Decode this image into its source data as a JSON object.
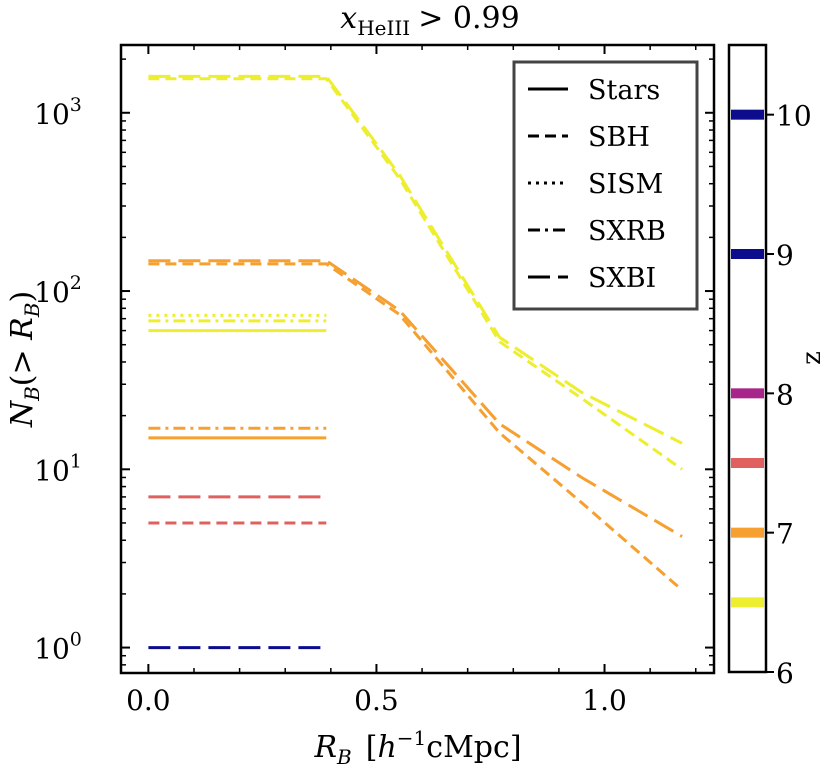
{
  "chart_data": {
    "type": "line",
    "title": "x_HeIII > 0.99",
    "title_parts": {
      "var": "x",
      "sub": "HeIII",
      "rel": "> 0.99"
    },
    "xlabel": "R_B [h^-1 cMpc]",
    "xlabel_parts": {
      "var": "R",
      "sub": "B",
      "open": "[",
      "h": "h",
      "sup": "−1",
      "unit": "cMpc",
      "close": "]"
    },
    "ylabel": "N_B(> R_B)",
    "ylabel_parts": {
      "var": "N",
      "sub": "B",
      "mid": "(> ",
      "var2": "R",
      "sub2": "B",
      "close": ")"
    },
    "xlim": [
      -0.06,
      1.24
    ],
    "ylim": [
      0.72,
      2400
    ],
    "yscale": "log",
    "xticks": [
      {
        "value": 0.0,
        "label": "0.0"
      },
      {
        "value": 0.5,
        "label": "0.5"
      },
      {
        "value": 1.0,
        "label": "1.0"
      }
    ],
    "yticks": [
      {
        "value": 1,
        "base": "10",
        "exp": "0"
      },
      {
        "value": 10,
        "base": "10",
        "exp": "1"
      },
      {
        "value": 100,
        "base": "10",
        "exp": "2"
      },
      {
        "value": 1000,
        "base": "10",
        "exp": "3"
      }
    ],
    "legend": {
      "position": "top-right",
      "entries": [
        {
          "label": "Stars",
          "style": "solid"
        },
        {
          "label": "SBH",
          "style": "dashed"
        },
        {
          "label": "SISM",
          "style": "dotted"
        },
        {
          "label": "SXRB",
          "style": "dashdot"
        },
        {
          "label": "SXBI",
          "style": "longdash"
        }
      ]
    },
    "colorbar": {
      "label": "z",
      "min": 6,
      "max": 10.5,
      "ticks": [
        {
          "value": 6,
          "label": "6"
        },
        {
          "value": 7,
          "label": "7"
        },
        {
          "value": 8,
          "label": "8"
        },
        {
          "value": 9,
          "label": "9"
        },
        {
          "value": 10,
          "label": "10"
        }
      ],
      "markers": [
        {
          "z": 10.0,
          "color": "#0c0c8c"
        },
        {
          "z": 9.0,
          "color": "#0c0c8c"
        },
        {
          "z": 8.0,
          "color": "#a8268c"
        },
        {
          "z": 7.5,
          "color": "#e06060"
        },
        {
          "z": 7.0,
          "color": "#f5a030"
        },
        {
          "z": 6.5,
          "color": "#eeee30"
        }
      ]
    },
    "series": [
      {
        "name": "SXBI z=6.5",
        "color": "#eeee30",
        "style": "longdash",
        "x": [
          0.0,
          0.39,
          0.55,
          0.77,
          0.95,
          1.17
        ],
        "y": [
          1600,
          1600,
          450,
          55,
          27,
          14
        ]
      },
      {
        "name": "SBH z=6.5",
        "color": "#eeee30",
        "style": "dashed",
        "x": [
          0.0,
          0.39,
          0.55,
          0.77,
          0.95,
          1.17
        ],
        "y": [
          1550,
          1550,
          430,
          52,
          25,
          10
        ]
      },
      {
        "name": "SISM z=6.5",
        "color": "#eeee30",
        "style": "dotted",
        "x": [
          0.0,
          0.39
        ],
        "y": [
          73,
          73
        ]
      },
      {
        "name": "SXRB z=6.5",
        "color": "#eeee30",
        "style": "dashdot",
        "x": [
          0.0,
          0.39
        ],
        "y": [
          68,
          68
        ]
      },
      {
        "name": "Stars z=6.5",
        "color": "#eeee30",
        "style": "solid",
        "x": [
          0.0,
          0.39
        ],
        "y": [
          60,
          60
        ]
      },
      {
        "name": "SXBI z=7",
        "color": "#f5a030",
        "style": "longdash",
        "x": [
          0.0,
          0.39,
          0.55,
          0.77,
          0.95,
          1.17
        ],
        "y": [
          148,
          148,
          78,
          18,
          9,
          4.2
        ]
      },
      {
        "name": "SBH z=7",
        "color": "#f5a030",
        "style": "dashed",
        "x": [
          0.0,
          0.39,
          0.55,
          0.77,
          0.95,
          1.17
        ],
        "y": [
          142,
          142,
          74,
          16,
          6.5,
          2.1
        ]
      },
      {
        "name": "SXRB z=7",
        "color": "#f5a030",
        "style": "dashdot",
        "x": [
          0.0,
          0.39
        ],
        "y": [
          17,
          17
        ]
      },
      {
        "name": "Stars z=7",
        "color": "#f5a030",
        "style": "solid",
        "x": [
          0.0,
          0.39
        ],
        "y": [
          15,
          15
        ]
      },
      {
        "name": "SXBI z=7.5",
        "color": "#e06060",
        "style": "longdash",
        "x": [
          0.0,
          0.39
        ],
        "y": [
          7,
          7
        ]
      },
      {
        "name": "SBH z=7.5",
        "color": "#e06060",
        "style": "dashed",
        "x": [
          0.0,
          0.39
        ],
        "y": [
          5,
          5
        ]
      },
      {
        "name": "SXBI z=10",
        "color": "#0c0c8c",
        "style": "longdash",
        "x": [
          0.0,
          0.39
        ],
        "y": [
          1,
          1
        ]
      }
    ]
  }
}
